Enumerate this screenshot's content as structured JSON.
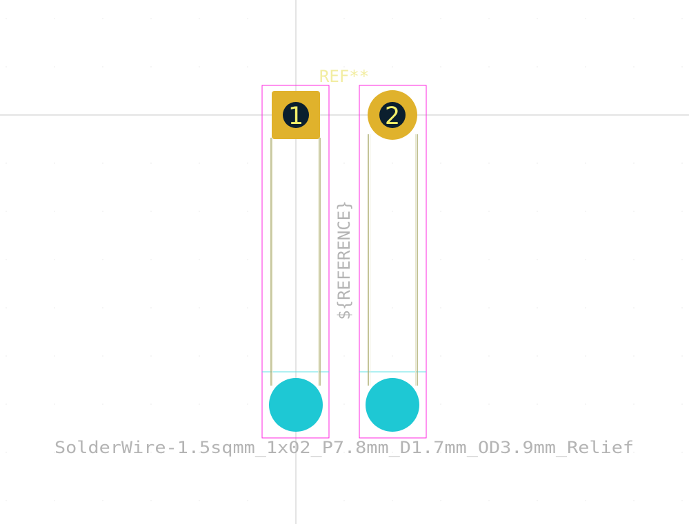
{
  "footprint": {
    "ref_label": "REF**",
    "reference_field": "${REFERENCE}",
    "value_label": "SolderWire-1.5sqmm_1x02_P7.8mm_D1.7mm_OD3.9mm_Relief"
  },
  "pads": [
    {
      "number": "1",
      "shape": "rect"
    },
    {
      "number": "2",
      "shape": "circle"
    }
  ],
  "colors": {
    "background": "#ffffff",
    "crosshair": "#c8c8c8",
    "grid_dot": "#d6d6d6",
    "courtyard": "#ff26e2",
    "fab": "#afaf74",
    "fab_fill": "#e8e8d0",
    "silk_text": "#f2eda1",
    "pad_copper": "#e0b22c",
    "pad_hole": "#0b1f2e",
    "pad_number": "#f4f06a",
    "relief_hole": "#1ec8d4",
    "relief_line": "#5fe0e6",
    "label_text": "#b4b4b4"
  }
}
